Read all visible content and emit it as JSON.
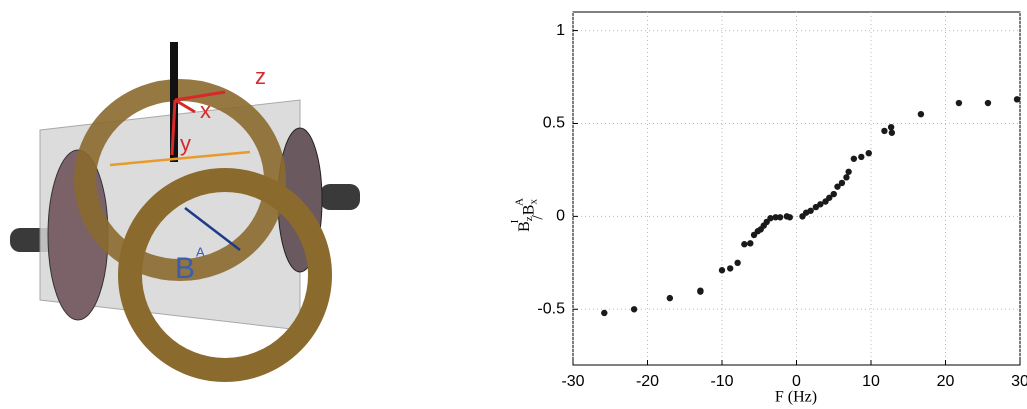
{
  "illustration": {
    "axis_labels": [
      "z",
      "x",
      "y"
    ],
    "field_label": "B",
    "field_sup": "A"
  },
  "chart_data": {
    "type": "scatter",
    "xlabel": "F (Hz)",
    "ylabel_parts": [
      "B",
      "z",
      "I",
      "/",
      "B",
      "x",
      "A"
    ],
    "x": [
      -25.8,
      -21.8,
      -17,
      -12.9,
      -12.9,
      -10,
      -8.9,
      -7.9,
      -7,
      -6.2,
      -5.7,
      -5.2,
      -4.8,
      -4.4,
      -4,
      -3.5,
      -2.8,
      -2.2,
      -1.3,
      -0.9,
      0.8,
      1.3,
      1.9,
      2.6,
      3.2,
      3.9,
      4.4,
      5,
      5.5,
      6.1,
      6.7,
      7,
      7.7,
      8.7,
      9.7,
      11.8,
      12.7,
      12.8,
      16.7,
      21.8,
      25.7,
      29.6
    ],
    "values": [
      -0.52,
      -0.5,
      -0.44,
      -0.4,
      -0.405,
      -0.29,
      -0.28,
      -0.25,
      -0.15,
      -0.145,
      -0.1,
      -0.08,
      -0.07,
      -0.05,
      -0.03,
      -0.01,
      -0.005,
      -0.005,
      0,
      -0.005,
      0,
      0.02,
      0.03,
      0.05,
      0.065,
      0.08,
      0.1,
      0.12,
      0.16,
      0.18,
      0.21,
      0.24,
      0.31,
      0.32,
      0.34,
      0.46,
      0.48,
      0.45,
      0.55,
      0.61,
      0.61,
      0.63
    ],
    "color": "#1a1a1a",
    "xlim": [
      -30,
      30
    ],
    "xticks": [
      -30,
      -20,
      -10,
      0,
      10,
      20,
      30
    ],
    "ylim": [
      -0.8,
      1.1
    ],
    "yticks": [
      -0.5,
      0,
      0.5,
      1
    ],
    "grid": true
  }
}
